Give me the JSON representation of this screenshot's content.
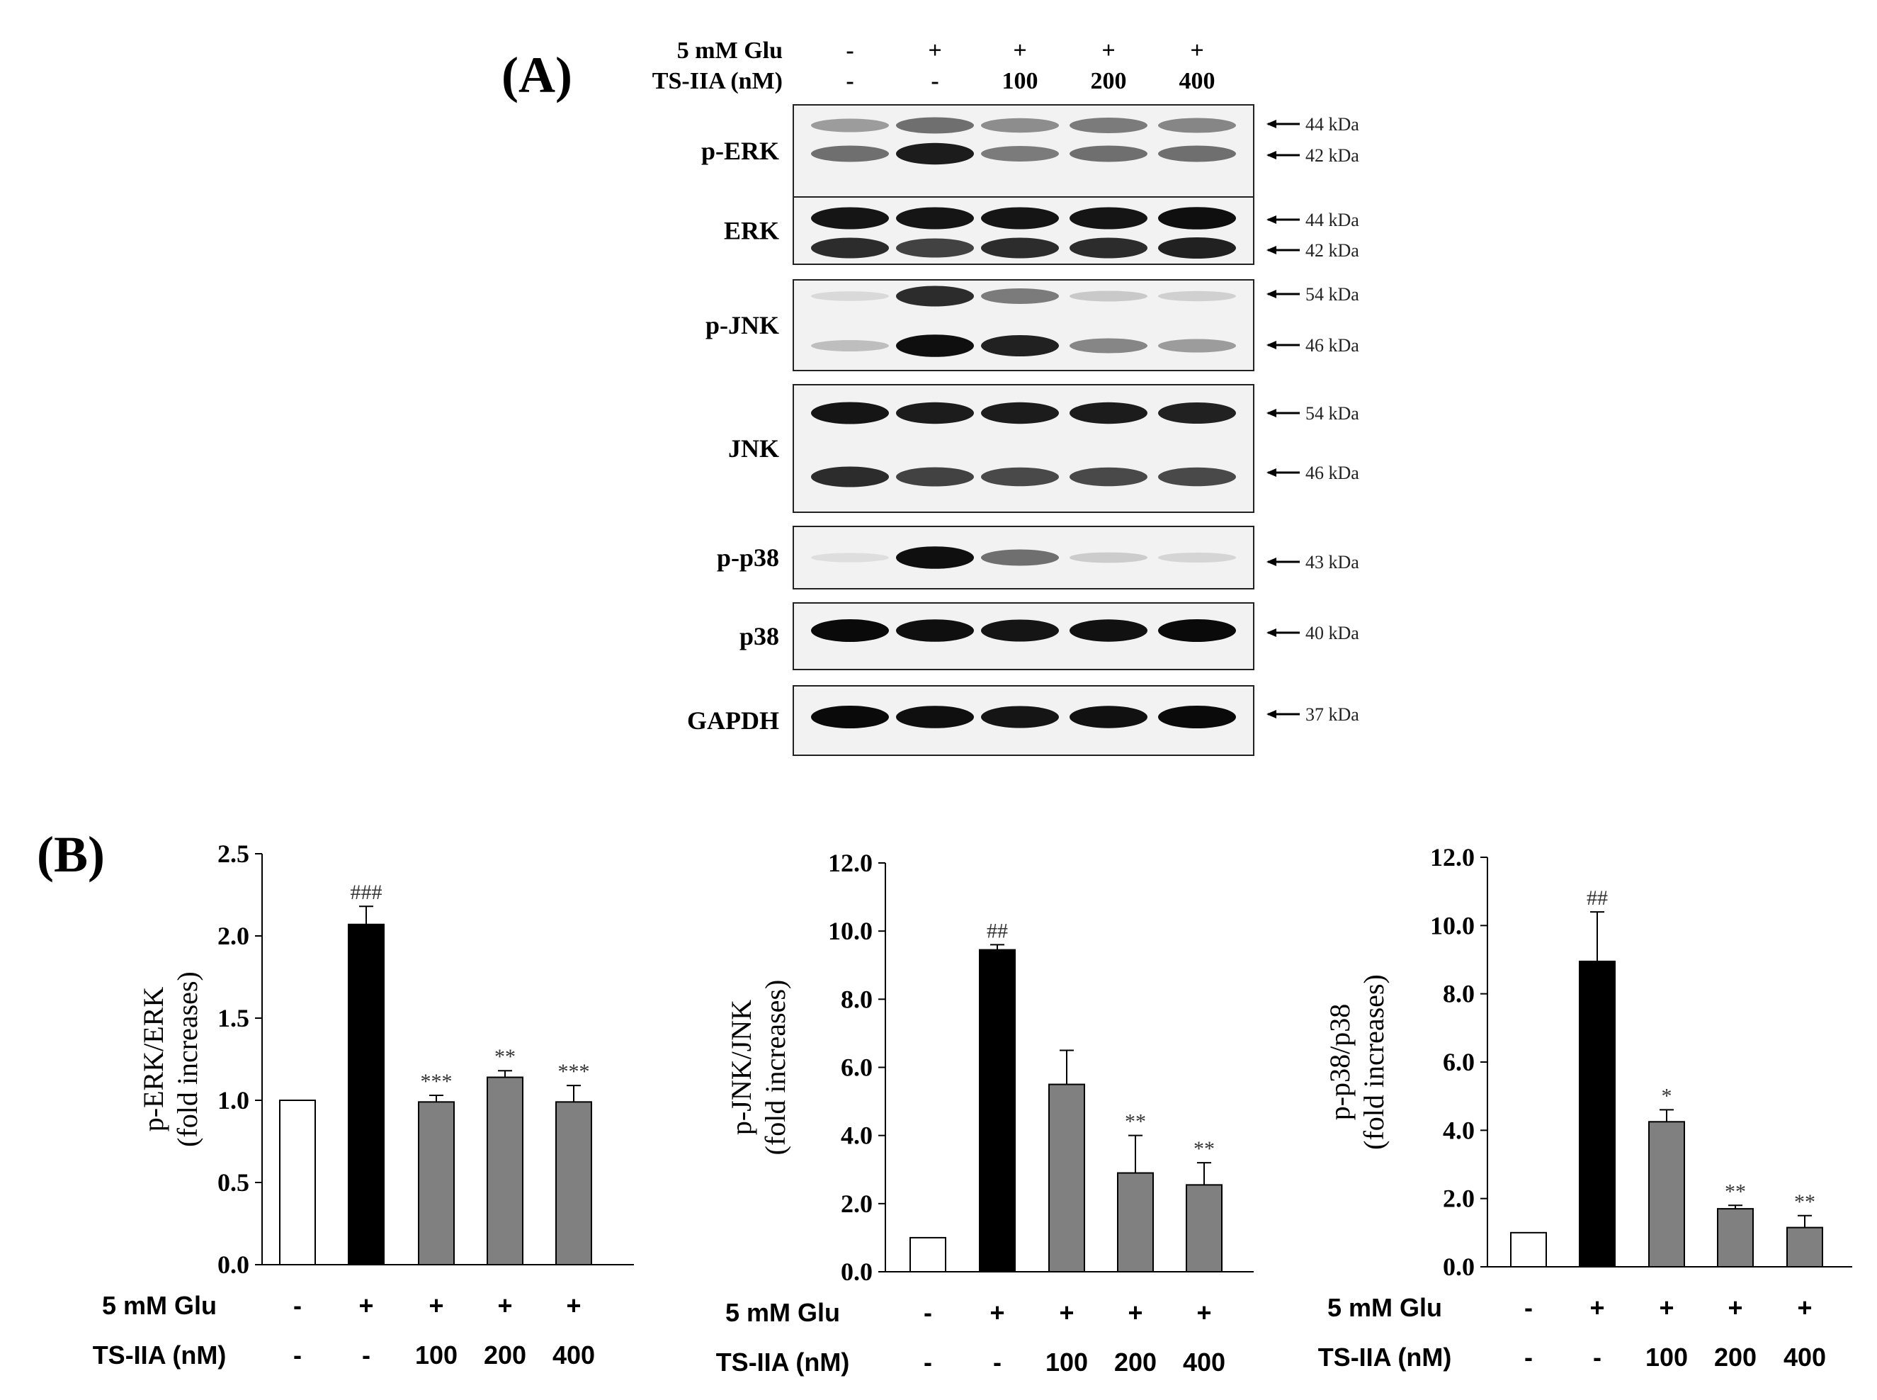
{
  "panel_a": {
    "label": "(A)",
    "treatment_rows": [
      {
        "label": "5 mM Glu",
        "values": [
          "-",
          "+",
          "+",
          "+",
          "+"
        ]
      },
      {
        "label": "TS-IIA (nM)",
        "values": [
          "-",
          "-",
          "100",
          "200",
          "400"
        ]
      }
    ],
    "blots": [
      {
        "name": "p-ERK",
        "markers": [
          "44 kDa",
          "42 kDa"
        ],
        "bands": [
          [
            0.35,
            0.55,
            0.42,
            0.5,
            0.45
          ],
          [
            0.55,
            0.92,
            0.5,
            0.55,
            0.55
          ]
        ]
      },
      {
        "name": "ERK",
        "markers": [
          "44 kDa",
          "42 kDa"
        ],
        "bands": [
          [
            0.95,
            0.95,
            0.95,
            0.95,
            0.98
          ],
          [
            0.85,
            0.75,
            0.85,
            0.85,
            0.9
          ]
        ]
      },
      {
        "name": "p-JNK",
        "markers": [
          "54 kDa",
          "46 kDa"
        ],
        "bands": [
          [
            0.08,
            0.85,
            0.5,
            0.15,
            0.12
          ],
          [
            0.2,
            0.98,
            0.9,
            0.45,
            0.35
          ]
        ]
      },
      {
        "name": "JNK",
        "markers": [
          "54 kDa",
          "46 kDa"
        ],
        "bands": [
          [
            0.95,
            0.92,
            0.92,
            0.92,
            0.9
          ],
          [
            0.85,
            0.75,
            0.72,
            0.72,
            0.72
          ]
        ]
      },
      {
        "name": "p-p38",
        "markers": [
          "43 kDa"
        ],
        "bands": [
          [
            0.06,
            0.98,
            0.55,
            0.14,
            0.1
          ]
        ]
      },
      {
        "name": "p38",
        "markers": [
          "40 kDa"
        ],
        "bands": [
          [
            1.0,
            0.98,
            0.95,
            0.97,
            1.0
          ]
        ]
      },
      {
        "name": "GAPDH",
        "markers": [
          "37 kDa"
        ],
        "bands": [
          [
            1.0,
            0.98,
            0.95,
            0.97,
            1.0
          ]
        ]
      }
    ]
  },
  "panel_b": {
    "label": "(B)",
    "treatment_rows": [
      {
        "label": "5 mM Glu",
        "values": [
          "-",
          "+",
          "+",
          "+",
          "+"
        ]
      },
      {
        "label": "TS-IIA (nM)",
        "values": [
          "-",
          "-",
          "100",
          "200",
          "400"
        ]
      }
    ]
  },
  "chart_data": [
    {
      "type": "bar",
      "ylabel": "p-ERK/ERK",
      "ylabel_sub": "(fold increases)",
      "categories": [
        "1",
        "2",
        "3",
        "4",
        "5"
      ],
      "values": [
        1.0,
        2.07,
        0.99,
        1.14,
        0.99
      ],
      "errors": [
        0.0,
        0.11,
        0.04,
        0.04,
        0.1
      ],
      "annotations": [
        "",
        "###",
        "***",
        "**",
        "***"
      ],
      "bar_colors": [
        "#ffffff",
        "#000000",
        "#808080",
        "#808080",
        "#808080"
      ],
      "ylim": [
        0,
        2.5
      ],
      "yticks": [
        "0.0",
        "0.5",
        "1.0",
        "1.5",
        "2.0",
        "2.5"
      ]
    },
    {
      "type": "bar",
      "ylabel": "p-JNK/JNK",
      "ylabel_sub": "(fold increases)",
      "categories": [
        "1",
        "2",
        "3",
        "4",
        "5"
      ],
      "values": [
        1.0,
        9.45,
        5.5,
        2.9,
        2.55
      ],
      "errors": [
        0.0,
        0.15,
        1.0,
        1.1,
        0.65
      ],
      "annotations": [
        "",
        "##",
        "",
        "**",
        "**"
      ],
      "bar_colors": [
        "#ffffff",
        "#000000",
        "#808080",
        "#808080",
        "#808080"
      ],
      "ylim": [
        0,
        12
      ],
      "yticks": [
        "0.0",
        "2.0",
        "4.0",
        "6.0",
        "8.0",
        "10.0",
        "12.0"
      ]
    },
    {
      "type": "bar",
      "ylabel": "p-p38/p38",
      "ylabel_sub": "(fold increases)",
      "categories": [
        "1",
        "2",
        "3",
        "4",
        "5"
      ],
      "values": [
        1.0,
        8.95,
        4.25,
        1.7,
        1.15
      ],
      "errors": [
        0.0,
        1.45,
        0.35,
        0.1,
        0.35
      ],
      "annotations": [
        "",
        "##",
        "*",
        "**",
        "**"
      ],
      "bar_colors": [
        "#ffffff",
        "#000000",
        "#808080",
        "#808080",
        "#808080"
      ],
      "ylim": [
        0,
        12
      ],
      "yticks": [
        "0.0",
        "2.0",
        "4.0",
        "6.0",
        "8.0",
        "10.0",
        "12.0"
      ]
    }
  ]
}
